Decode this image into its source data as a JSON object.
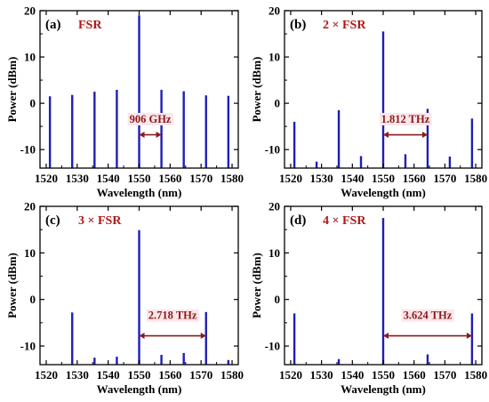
{
  "colors": {
    "bar": "#1f1fb4",
    "title_text": "#b01818",
    "annotation": "#8b1a1a",
    "axis": "#000000",
    "label_bg": "#fbe6ea"
  },
  "chart_data": [
    {
      "type": "bar",
      "panel_letter": "(a)",
      "title": "FSR",
      "xlabel": "Wavelength (nm)",
      "ylabel": "Power (dBm)",
      "xlim": [
        1518,
        1582
      ],
      "ylim": [
        -14,
        20
      ],
      "xticks": [
        1520,
        1530,
        1540,
        1550,
        1560,
        1570,
        1580
      ],
      "yticks": [
        -10,
        0,
        10,
        20
      ],
      "series": [
        {
          "x": [
            1521.2,
            1528.4,
            1535.6,
            1542.8,
            1550.0,
            1557.2,
            1564.4,
            1571.6,
            1578.8
          ],
          "values": [
            1.5,
            1.8,
            2.5,
            2.9,
            19.0,
            2.9,
            2.6,
            1.7,
            1.6
          ]
        }
      ],
      "annotation": {
        "text": "906 GHz",
        "x_from": 1550.0,
        "x_to": 1557.2,
        "y": -6.8,
        "text_x": 1553.6,
        "text_y": -4.2
      }
    },
    {
      "type": "bar",
      "panel_letter": "(b)",
      "title": "2 × FSR",
      "xlabel": "Wavelength (nm)",
      "ylabel": "Power (dBm)",
      "xlim": [
        1518,
        1582
      ],
      "ylim": [
        -14,
        20
      ],
      "xticks": [
        1520,
        1530,
        1540,
        1550,
        1560,
        1570,
        1580
      ],
      "yticks": [
        -10,
        0,
        10,
        20
      ],
      "series": [
        {
          "x": [
            1521.2,
            1528.4,
            1535.6,
            1542.8,
            1550.0,
            1557.2,
            1564.4,
            1571.6,
            1578.8
          ],
          "values": [
            -4.0,
            -12.6,
            -1.5,
            -11.4,
            15.5,
            -11.0,
            -1.2,
            -11.5,
            -3.3
          ]
        }
      ],
      "annotation": {
        "text": "1.812 THz",
        "x_from": 1550.0,
        "x_to": 1564.4,
        "y": -6.8,
        "text_x": 1557.2,
        "text_y": -4.2
      }
    },
    {
      "type": "bar",
      "panel_letter": "(c)",
      "title": "3 × FSR",
      "xlabel": "Wavelength (nm)",
      "ylabel": "Power (dBm)",
      "xlim": [
        1518,
        1582
      ],
      "ylim": [
        -14,
        20
      ],
      "xticks": [
        1520,
        1530,
        1540,
        1550,
        1560,
        1570,
        1580
      ],
      "yticks": [
        -10,
        0,
        10,
        20
      ],
      "series": [
        {
          "x": [
            1528.4,
            1535.6,
            1542.8,
            1550.0,
            1557.2,
            1564.4,
            1571.6,
            1578.8
          ],
          "values": [
            -2.8,
            -12.5,
            -12.3,
            14.9,
            -11.9,
            -11.5,
            -2.7,
            -13.0
          ]
        }
      ],
      "annotation": {
        "text": "2.718 THz",
        "x_from": 1550.0,
        "x_to": 1571.6,
        "y": -7.8,
        "text_x": 1560.8,
        "text_y": -4.2
      }
    },
    {
      "type": "bar",
      "panel_letter": "(d)",
      "title": "4 × FSR",
      "xlabel": "Wavelength (nm)",
      "ylabel": "Power (dBm)",
      "xlim": [
        1518,
        1582
      ],
      "ylim": [
        -14,
        20
      ],
      "xticks": [
        1520,
        1530,
        1540,
        1550,
        1560,
        1570,
        1580
      ],
      "yticks": [
        -10,
        0,
        10,
        20
      ],
      "series": [
        {
          "x": [
            1521.2,
            1535.6,
            1550.0,
            1564.4,
            1578.8
          ],
          "values": [
            -3.0,
            -12.8,
            17.5,
            -11.8,
            -3.0
          ]
        }
      ],
      "annotation": {
        "text": "3.624 THz",
        "x_from": 1550.0,
        "x_to": 1578.8,
        "y": -7.8,
        "text_x": 1564.4,
        "text_y": -4.2
      }
    }
  ]
}
